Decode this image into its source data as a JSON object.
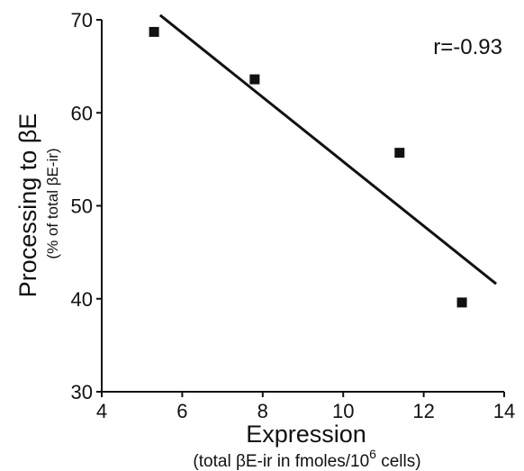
{
  "chart_data": {
    "type": "scatter",
    "title": "",
    "xlabel": "Expression",
    "xlabel_sub": "(total βE-ir in fmoles/10",
    "xlabel_sub_sup": "6",
    "xlabel_sub_end": " cells)",
    "ylabel": "Processing to βE",
    "ylabel_sub": "(% of total βE-ir)",
    "xlim": [
      4,
      14
    ],
    "ylim": [
      30,
      70
    ],
    "xticks": [
      "4",
      "6",
      "8",
      "10",
      "12",
      "14"
    ],
    "yticks": [
      "30",
      "40",
      "50",
      "60",
      "70"
    ],
    "grid": false,
    "legend": "none",
    "points": [
      {
        "x": 5.3,
        "y": 68.7
      },
      {
        "x": 7.8,
        "y": 63.6
      },
      {
        "x": 11.4,
        "y": 55.7
      },
      {
        "x": 12.95,
        "y": 39.6
      }
    ],
    "fit_line": {
      "x": [
        5.45,
        13.8
      ],
      "y": [
        70.5,
        41.6
      ]
    },
    "annotation": "r=-0.93",
    "marker_color": "#111111",
    "line_color": "#111111"
  }
}
